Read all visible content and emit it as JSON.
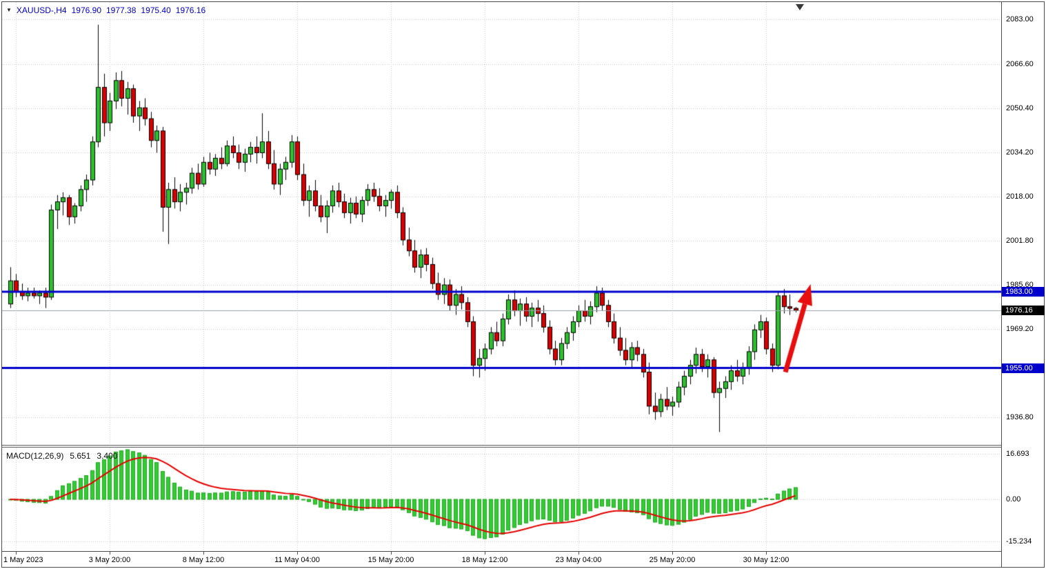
{
  "title": {
    "dropdown_icon": "▼",
    "symbol_timeframe": "XAUUSD-,H4",
    "open": "1976.90",
    "high": "1977.38",
    "low": "1975.40",
    "close": "1976.16"
  },
  "macd": {
    "name": "MACD(12,26,9)",
    "value_main": "5.651",
    "value_signal": "3.400"
  },
  "colors": {
    "bull": "#2ebf2e",
    "bear": "#d60000",
    "wick": "#000000",
    "grid": "#c9c9c9",
    "hline": "#0000cd",
    "current_label_bg": "#000000",
    "macd_bar": "#33cc33",
    "macd_bar_border": "#23a523",
    "macd_signal": "#e60000",
    "bid_line": "#9aa0a6",
    "arrow": "#e60e0e",
    "title_text": "#0000bd"
  },
  "chart_data": [
    {
      "type": "candlestick",
      "symbol": "XAUUSD-",
      "interval": "H4",
      "ylim": [
        1926.8,
        2089.3
      ],
      "y_ticks": {
        "values": [
          2083.0,
          2066.6,
          2050.4,
          2034.2,
          2018.0,
          2001.8,
          1985.6,
          1969.2,
          1936.8
        ],
        "labels": [
          "2083.00",
          "2066.60",
          "2050.40",
          "2034.20",
          "2018.00",
          "2001.80",
          "1985.60",
          "1969.20",
          "1936.80"
        ]
      },
      "x_ticks": [
        {
          "index": 1,
          "label": "1 May 2023"
        },
        {
          "index": 17,
          "label": "3 May 20:00"
        },
        {
          "index": 33,
          "label": "8 May 12:00"
        },
        {
          "index": 49,
          "label": "11 May 04:00"
        },
        {
          "index": 65,
          "label": "15 May 20:00"
        },
        {
          "index": 81,
          "label": "18 May 12:00"
        },
        {
          "index": 97,
          "label": "23 May 04:00"
        },
        {
          "index": 113,
          "label": "25 May 20:00"
        },
        {
          "index": 129,
          "label": "30 May 12:00"
        }
      ],
      "horizontal_lines": [
        {
          "value": 1983.0,
          "label": "1983.00"
        },
        {
          "value": 1955.0,
          "label": "1955.00"
        }
      ],
      "current_price": {
        "value": 1976.16,
        "label": "1976.16"
      },
      "annotations": [
        {
          "type": "arrow",
          "from": {
            "index": 132.3,
            "price": 1953.5
          },
          "to": {
            "index": 136.6,
            "price": 1985.8
          }
        }
      ],
      "ohlc": [
        [
          1978.5,
          1992.0,
          1977.0,
          1987.0
        ],
        [
          1987.0,
          1989.5,
          1981.0,
          1983.0
        ],
        [
          1983.0,
          1986.0,
          1980.0,
          1981.5
        ],
        [
          1981.5,
          1984.5,
          1979.5,
          1982.5
        ],
        [
          1982.5,
          1984.5,
          1980.5,
          1981.5
        ],
        [
          1981.5,
          1983.5,
          1978.5,
          1982.5
        ],
        [
          1982.5,
          1984.5,
          1977.0,
          1981.0
        ],
        [
          1981.0,
          2015.0,
          1980.0,
          2013.0
        ],
        [
          2013.0,
          2018.5,
          2006.0,
          2016.0
        ],
        [
          2016.0,
          2019.5,
          2011.0,
          2017.5
        ],
        [
          2017.5,
          2018.5,
          2007.5,
          2010.5
        ],
        [
          2010.5,
          2015.5,
          2008.0,
          2014.5
        ],
        [
          2014.5,
          2022.0,
          2012.5,
          2020.5
        ],
        [
          2020.5,
          2026.0,
          2016.0,
          2024.0
        ],
        [
          2024.0,
          2040.0,
          2022.0,
          2038.0
        ],
        [
          2038.0,
          2081.0,
          2036.0,
          2058.0
        ],
        [
          2058.0,
          2063.0,
          2040.0,
          2045.0
        ],
        [
          2045.0,
          2056.0,
          2042.0,
          2053.0
        ],
        [
          2053.0,
          2063.5,
          2050.0,
          2060.5
        ],
        [
          2060.5,
          2064.0,
          2051.0,
          2054.0
        ],
        [
          2054.0,
          2060.0,
          2048.0,
          2057.5
        ],
        [
          2057.5,
          2059.0,
          2045.0,
          2047.5
        ],
        [
          2047.5,
          2053.0,
          2042.0,
          2050.5
        ],
        [
          2050.5,
          2054.0,
          2044.0,
          2046.5
        ],
        [
          2046.5,
          2049.0,
          2036.0,
          2038.5
        ],
        [
          2038.5,
          2044.0,
          2034.0,
          2042.0
        ],
        [
          2042.0,
          2043.5,
          2005.0,
          2014.0
        ],
        [
          2014.0,
          2023.0,
          2000.5,
          2020.5
        ],
        [
          2020.5,
          2025.0,
          2013.5,
          2016.0
        ],
        [
          2016.0,
          2022.5,
          2012.5,
          2019.5
        ],
        [
          2019.5,
          2023.0,
          2015.0,
          2021.0
        ],
        [
          2021.0,
          2028.5,
          2019.0,
          2026.5
        ],
        [
          2026.5,
          2030.0,
          2020.5,
          2022.5
        ],
        [
          2022.5,
          2032.5,
          2021.5,
          2030.5
        ],
        [
          2030.5,
          2034.0,
          2026.0,
          2028.0
        ],
        [
          2028.0,
          2033.5,
          2025.5,
          2032.0
        ],
        [
          2032.0,
          2036.0,
          2028.0,
          2030.0
        ],
        [
          2030.0,
          2038.5,
          2029.0,
          2036.5
        ],
        [
          2036.5,
          2040.0,
          2032.0,
          2034.0
        ],
        [
          2034.0,
          2037.0,
          2028.0,
          2030.5
        ],
        [
          2030.5,
          2035.5,
          2027.0,
          2033.5
        ],
        [
          2033.5,
          2038.0,
          2030.5,
          2036.0
        ],
        [
          2036.0,
          2040.0,
          2030.0,
          2034.0
        ],
        [
          2034.0,
          2048.5,
          2032.0,
          2038.0
        ],
        [
          2038.0,
          2042.0,
          2028.0,
          2030.0
        ],
        [
          2030.0,
          2035.0,
          2020.5,
          2022.5
        ],
        [
          2022.5,
          2030.0,
          2018.5,
          2028.0
        ],
        [
          2028.0,
          2032.5,
          2024.0,
          2030.5
        ],
        [
          2030.5,
          2040.5,
          2028.5,
          2038.0
        ],
        [
          2038.0,
          2040.0,
          2024.0,
          2026.0
        ],
        [
          2026.0,
          2030.0,
          2014.5,
          2016.5
        ],
        [
          2016.5,
          2022.0,
          2010.5,
          2020.0
        ],
        [
          2020.0,
          2024.0,
          2012.5,
          2014.5
        ],
        [
          2014.5,
          2018.5,
          2008.5,
          2010.5
        ],
        [
          2010.5,
          2016.5,
          2004.5,
          2014.5
        ],
        [
          2014.5,
          2022.0,
          2012.0,
          2020.0
        ],
        [
          2020.0,
          2023.0,
          2014.0,
          2016.0
        ],
        [
          2016.0,
          2019.0,
          2010.0,
          2012.0
        ],
        [
          2012.0,
          2017.5,
          2008.0,
          2015.5
        ],
        [
          2015.5,
          2018.0,
          2010.0,
          2011.5
        ],
        [
          2011.5,
          2018.0,
          2008.5,
          2016.5
        ],
        [
          2016.5,
          2022.5,
          2014.5,
          2020.5
        ],
        [
          2020.5,
          2023.0,
          2016.0,
          2018.0
        ],
        [
          2018.0,
          2021.0,
          2012.5,
          2014.5
        ],
        [
          2014.5,
          2018.5,
          2010.5,
          2016.5
        ],
        [
          2016.5,
          2020.5,
          2013.5,
          2019.5
        ],
        [
          2019.5,
          2022.0,
          2010.0,
          2012.0
        ],
        [
          2012.0,
          2014.0,
          2000.0,
          2002.0
        ],
        [
          2002.0,
          2006.5,
          1996.0,
          1998.0
        ],
        [
          1998.0,
          2002.0,
          1990.0,
          1992.0
        ],
        [
          1992.0,
          1998.5,
          1988.0,
          1996.5
        ],
        [
          1996.5,
          1999.0,
          1990.5,
          1993.0
        ],
        [
          1993.0,
          1995.5,
          1984.0,
          1986.0
        ],
        [
          1986.0,
          1990.0,
          1980.0,
          1982.0
        ],
        [
          1982.0,
          1988.0,
          1978.5,
          1985.5
        ],
        [
          1985.5,
          1987.5,
          1976.0,
          1978.0
        ],
        [
          1978.0,
          1984.0,
          1974.5,
          1982.0
        ],
        [
          1982.0,
          1985.0,
          1976.5,
          1979.0
        ],
        [
          1979.0,
          1981.0,
          1970.0,
          1972.0
        ],
        [
          1972.0,
          1974.0,
          1952.0,
          1956.0
        ],
        [
          1956.0,
          1962.0,
          1951.5,
          1958.5
        ],
        [
          1958.5,
          1964.0,
          1954.0,
          1962.0
        ],
        [
          1962.0,
          1970.0,
          1960.0,
          1968.0
        ],
        [
          1968.0,
          1972.0,
          1963.0,
          1965.0
        ],
        [
          1965.0,
          1975.0,
          1963.0,
          1973.0
        ],
        [
          1973.0,
          1982.0,
          1971.0,
          1980.0
        ],
        [
          1980.0,
          1983.5,
          1974.0,
          1976.0
        ],
        [
          1976.0,
          1980.5,
          1970.5,
          1978.5
        ],
        [
          1978.5,
          1981.0,
          1972.0,
          1974.0
        ],
        [
          1974.0,
          1979.0,
          1970.0,
          1977.0
        ],
        [
          1977.0,
          1980.0,
          1972.0,
          1975.0
        ],
        [
          1975.0,
          1978.0,
          1968.0,
          1970.0
        ],
        [
          1970.0,
          1972.5,
          1960.0,
          1962.0
        ],
        [
          1962.0,
          1965.0,
          1956.0,
          1958.0
        ],
        [
          1958.0,
          1966.0,
          1956.0,
          1964.0
        ],
        [
          1964.0,
          1970.0,
          1962.0,
          1968.0
        ],
        [
          1968.0,
          1974.0,
          1965.0,
          1972.0
        ],
        [
          1972.0,
          1978.0,
          1970.0,
          1976.0
        ],
        [
          1976.0,
          1980.0,
          1972.0,
          1974.0
        ],
        [
          1974.0,
          1979.5,
          1971.0,
          1977.5
        ],
        [
          1977.5,
          1985.0,
          1975.5,
          1982.5
        ],
        [
          1982.5,
          1984.5,
          1976.0,
          1978.0
        ],
        [
          1978.0,
          1980.0,
          1970.0,
          1972.0
        ],
        [
          1972.0,
          1975.0,
          1964.0,
          1966.0
        ],
        [
          1966.0,
          1970.0,
          1959.5,
          1961.5
        ],
        [
          1961.5,
          1966.0,
          1956.0,
          1958.0
        ],
        [
          1958.0,
          1964.5,
          1955.0,
          1962.5
        ],
        [
          1962.5,
          1965.0,
          1957.5,
          1960.0
        ],
        [
          1960.0,
          1962.0,
          1951.5,
          1953.5
        ],
        [
          1953.5,
          1957.0,
          1938.0,
          1941.0
        ],
        [
          1941.0,
          1946.0,
          1936.0,
          1939.0
        ],
        [
          1939.0,
          1945.5,
          1937.0,
          1943.5
        ],
        [
          1943.5,
          1948.0,
          1939.5,
          1941.0
        ],
        [
          1941.0,
          1944.5,
          1937.5,
          1942.5
        ],
        [
          1942.5,
          1950.0,
          1940.5,
          1948.0
        ],
        [
          1948.0,
          1954.0,
          1945.0,
          1952.0
        ],
        [
          1952.0,
          1958.0,
          1949.0,
          1956.0
        ],
        [
          1956.0,
          1962.5,
          1953.0,
          1960.0
        ],
        [
          1960.0,
          1962.0,
          1953.5,
          1955.5
        ],
        [
          1955.5,
          1960.0,
          1951.5,
          1958.0
        ],
        [
          1958.0,
          1959.0,
          1944.0,
          1946.0
        ],
        [
          1946.0,
          1950.0,
          1931.5,
          1947.5
        ],
        [
          1947.5,
          1952.0,
          1944.0,
          1950.0
        ],
        [
          1950.0,
          1956.0,
          1947.0,
          1954.0
        ],
        [
          1954.0,
          1958.0,
          1950.0,
          1952.0
        ],
        [
          1952.0,
          1957.0,
          1949.0,
          1955.0
        ],
        [
          1955.0,
          1963.0,
          1952.5,
          1961.0
        ],
        [
          1961.0,
          1971.0,
          1958.0,
          1969.0
        ],
        [
          1969.0,
          1974.5,
          1966.0,
          1972.0
        ],
        [
          1972.0,
          1973.5,
          1960.0,
          1962.0
        ],
        [
          1962.0,
          1964.0,
          1953.5,
          1956.0
        ],
        [
          1956.0,
          1983.0,
          1954.5,
          1981.5
        ],
        [
          1981.5,
          1984.0,
          1975.0,
          1977.5
        ],
        [
          1977.5,
          1982.0,
          1974.5,
          1976.9
        ],
        [
          1976.9,
          1977.38,
          1975.4,
          1976.16
        ]
      ]
    },
    {
      "type": "bar",
      "name": "MACD(12,26,9)",
      "params": [
        12,
        26,
        9
      ],
      "current": {
        "macd": 5.651,
        "signal": 3.4
      },
      "ylim": [
        -18.85,
        18.85
      ],
      "y_ticks": {
        "values": [
          16.693,
          0,
          -15.234
        ],
        "labels": [
          "16.693",
          "0.00",
          "-15.234"
        ]
      }
    }
  ]
}
